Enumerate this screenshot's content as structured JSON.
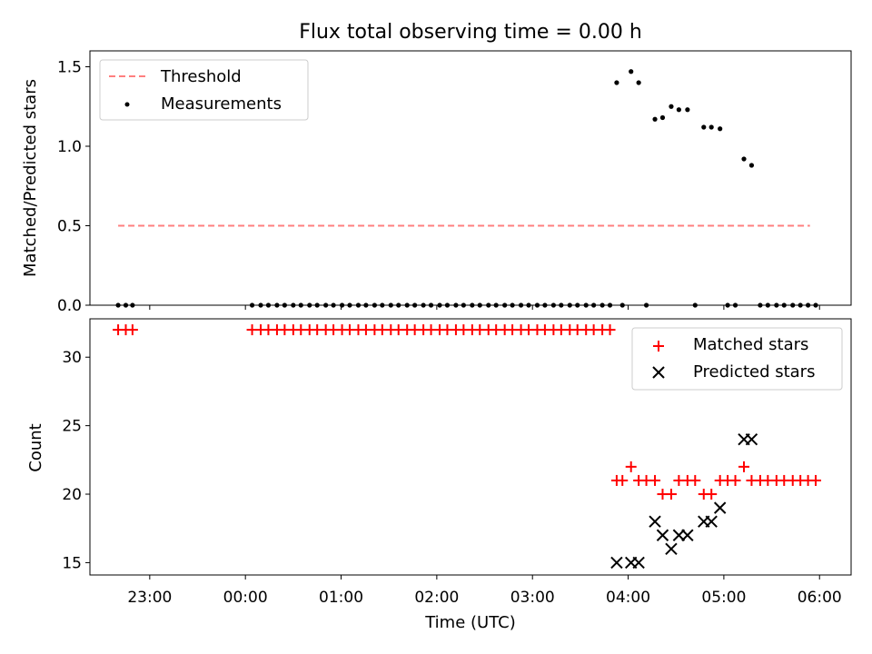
{
  "title": "Flux total observing time = 0.00 h",
  "colors": {
    "threshold": "#ff7f7f",
    "measurement": "#000000",
    "matched": "#ff0000",
    "predicted": "#000000"
  },
  "chart_data": [
    {
      "type": "scatter",
      "ylabel": "Matched/Predicted stars",
      "ylim": [
        0,
        1.6
      ],
      "yticks": [
        0,
        0.5,
        1.0,
        1.5
      ],
      "ytick_labels": [
        "0.0",
        "0.5",
        "1.0",
        "1.5"
      ],
      "xlim": [
        22.375,
        30.33
      ],
      "legend": {
        "placement": "upper left",
        "entries": [
          "Threshold",
          "Measurements"
        ]
      },
      "threshold": {
        "name": "Threshold",
        "y": 0.5,
        "x": [
          22.67,
          29.9
        ]
      },
      "series": [
        {
          "name": "Measurements",
          "points": [
            [
              22.67,
              0
            ],
            [
              22.75,
              0
            ],
            [
              22.82,
              0
            ],
            [
              24.07,
              0
            ],
            [
              24.16,
              0
            ],
            [
              24.24,
              0
            ],
            [
              24.33,
              0
            ],
            [
              24.41,
              0
            ],
            [
              24.5,
              0
            ],
            [
              24.58,
              0
            ],
            [
              24.67,
              0
            ],
            [
              24.75,
              0
            ],
            [
              24.84,
              0
            ],
            [
              24.92,
              0
            ],
            [
              25.01,
              0
            ],
            [
              25.09,
              0
            ],
            [
              25.18,
              0
            ],
            [
              25.26,
              0
            ],
            [
              25.35,
              0
            ],
            [
              25.43,
              0
            ],
            [
              25.52,
              0
            ],
            [
              25.6,
              0
            ],
            [
              25.69,
              0
            ],
            [
              25.77,
              0
            ],
            [
              25.86,
              0
            ],
            [
              25.94,
              0
            ],
            [
              26.03,
              0
            ],
            [
              26.11,
              0
            ],
            [
              26.2,
              0
            ],
            [
              26.28,
              0
            ],
            [
              26.37,
              0
            ],
            [
              26.45,
              0
            ],
            [
              26.54,
              0
            ],
            [
              26.62,
              0
            ],
            [
              26.71,
              0
            ],
            [
              26.79,
              0
            ],
            [
              26.88,
              0
            ],
            [
              26.96,
              0
            ],
            [
              27.05,
              0
            ],
            [
              27.13,
              0
            ],
            [
              27.22,
              0
            ],
            [
              27.3,
              0
            ],
            [
              27.39,
              0
            ],
            [
              27.47,
              0
            ],
            [
              27.56,
              0
            ],
            [
              27.64,
              0
            ],
            [
              27.73,
              0
            ],
            [
              27.81,
              0
            ],
            [
              27.88,
              1.4
            ],
            [
              27.94,
              0
            ],
            [
              28.03,
              1.47
            ],
            [
              28.11,
              1.4
            ],
            [
              28.19,
              0
            ],
            [
              28.28,
              1.17
            ],
            [
              28.36,
              1.18
            ],
            [
              28.45,
              1.25
            ],
            [
              28.53,
              1.23
            ],
            [
              28.62,
              1.23
            ],
            [
              28.7,
              0
            ],
            [
              28.79,
              1.12
            ],
            [
              28.87,
              1.12
            ],
            [
              28.96,
              1.11
            ],
            [
              29.04,
              0
            ],
            [
              29.12,
              0
            ],
            [
              29.21,
              0.92
            ],
            [
              29.29,
              0.88
            ],
            [
              29.38,
              0
            ],
            [
              29.46,
              0
            ],
            [
              29.55,
              0
            ],
            [
              29.63,
              0
            ],
            [
              29.72,
              0
            ],
            [
              29.8,
              0
            ],
            [
              29.88,
              0
            ],
            [
              29.96,
              0
            ]
          ]
        }
      ]
    },
    {
      "type": "scatter",
      "xlabel": "Time (UTC)",
      "ylabel": "Count",
      "ylim": [
        14.1,
        32.8
      ],
      "yticks": [
        15,
        20,
        25,
        30
      ],
      "ytick_labels": [
        "15",
        "20",
        "25",
        "30"
      ],
      "xlim": [
        22.375,
        30.33
      ],
      "xticks": [
        23,
        24,
        25,
        26,
        27,
        28,
        29,
        30
      ],
      "xtick_labels": [
        "23:00",
        "00:00",
        "01:00",
        "02:00",
        "03:00",
        "04:00",
        "05:00",
        "06:00"
      ],
      "legend": {
        "placement": "upper right",
        "entries": [
          "Matched stars",
          "Predicted stars"
        ]
      },
      "series": [
        {
          "name": "Matched stars",
          "marker": "+",
          "points": [
            [
              22.67,
              32
            ],
            [
              22.75,
              32
            ],
            [
              22.82,
              32
            ],
            [
              24.07,
              32
            ],
            [
              24.16,
              32
            ],
            [
              24.24,
              32
            ],
            [
              24.33,
              32
            ],
            [
              24.41,
              32
            ],
            [
              24.5,
              32
            ],
            [
              24.58,
              32
            ],
            [
              24.67,
              32
            ],
            [
              24.75,
              32
            ],
            [
              24.84,
              32
            ],
            [
              24.92,
              32
            ],
            [
              25.01,
              32
            ],
            [
              25.09,
              32
            ],
            [
              25.18,
              32
            ],
            [
              25.26,
              32
            ],
            [
              25.35,
              32
            ],
            [
              25.43,
              32
            ],
            [
              25.52,
              32
            ],
            [
              25.6,
              32
            ],
            [
              25.69,
              32
            ],
            [
              25.77,
              32
            ],
            [
              25.86,
              32
            ],
            [
              25.94,
              32
            ],
            [
              26.03,
              32
            ],
            [
              26.11,
              32
            ],
            [
              26.2,
              32
            ],
            [
              26.28,
              32
            ],
            [
              26.37,
              32
            ],
            [
              26.45,
              32
            ],
            [
              26.54,
              32
            ],
            [
              26.62,
              32
            ],
            [
              26.71,
              32
            ],
            [
              26.79,
              32
            ],
            [
              26.88,
              32
            ],
            [
              26.96,
              32
            ],
            [
              27.05,
              32
            ],
            [
              27.13,
              32
            ],
            [
              27.22,
              32
            ],
            [
              27.3,
              32
            ],
            [
              27.39,
              32
            ],
            [
              27.47,
              32
            ],
            [
              27.56,
              32
            ],
            [
              27.64,
              32
            ],
            [
              27.73,
              32
            ],
            [
              27.81,
              32
            ],
            [
              27.88,
              21
            ],
            [
              27.94,
              21
            ],
            [
              28.03,
              22
            ],
            [
              28.11,
              21
            ],
            [
              28.19,
              21
            ],
            [
              28.28,
              21
            ],
            [
              28.36,
              20
            ],
            [
              28.45,
              20
            ],
            [
              28.53,
              21
            ],
            [
              28.62,
              21
            ],
            [
              28.7,
              21
            ],
            [
              28.79,
              20
            ],
            [
              28.87,
              20
            ],
            [
              28.96,
              21
            ],
            [
              29.04,
              21
            ],
            [
              29.12,
              21
            ],
            [
              29.21,
              22
            ],
            [
              29.29,
              21
            ],
            [
              29.38,
              21
            ],
            [
              29.46,
              21
            ],
            [
              29.55,
              21
            ],
            [
              29.63,
              21
            ],
            [
              29.72,
              21
            ],
            [
              29.8,
              21
            ],
            [
              29.88,
              21
            ],
            [
              29.96,
              21
            ]
          ]
        },
        {
          "name": "Predicted stars",
          "marker": "x",
          "points": [
            [
              27.88,
              15
            ],
            [
              28.03,
              15
            ],
            [
              28.11,
              15
            ],
            [
              28.28,
              18
            ],
            [
              28.36,
              17
            ],
            [
              28.45,
              16
            ],
            [
              28.53,
              17
            ],
            [
              28.62,
              17
            ],
            [
              28.79,
              18
            ],
            [
              28.87,
              18
            ],
            [
              28.96,
              19
            ],
            [
              29.21,
              24
            ],
            [
              29.29,
              24
            ]
          ]
        }
      ]
    }
  ]
}
